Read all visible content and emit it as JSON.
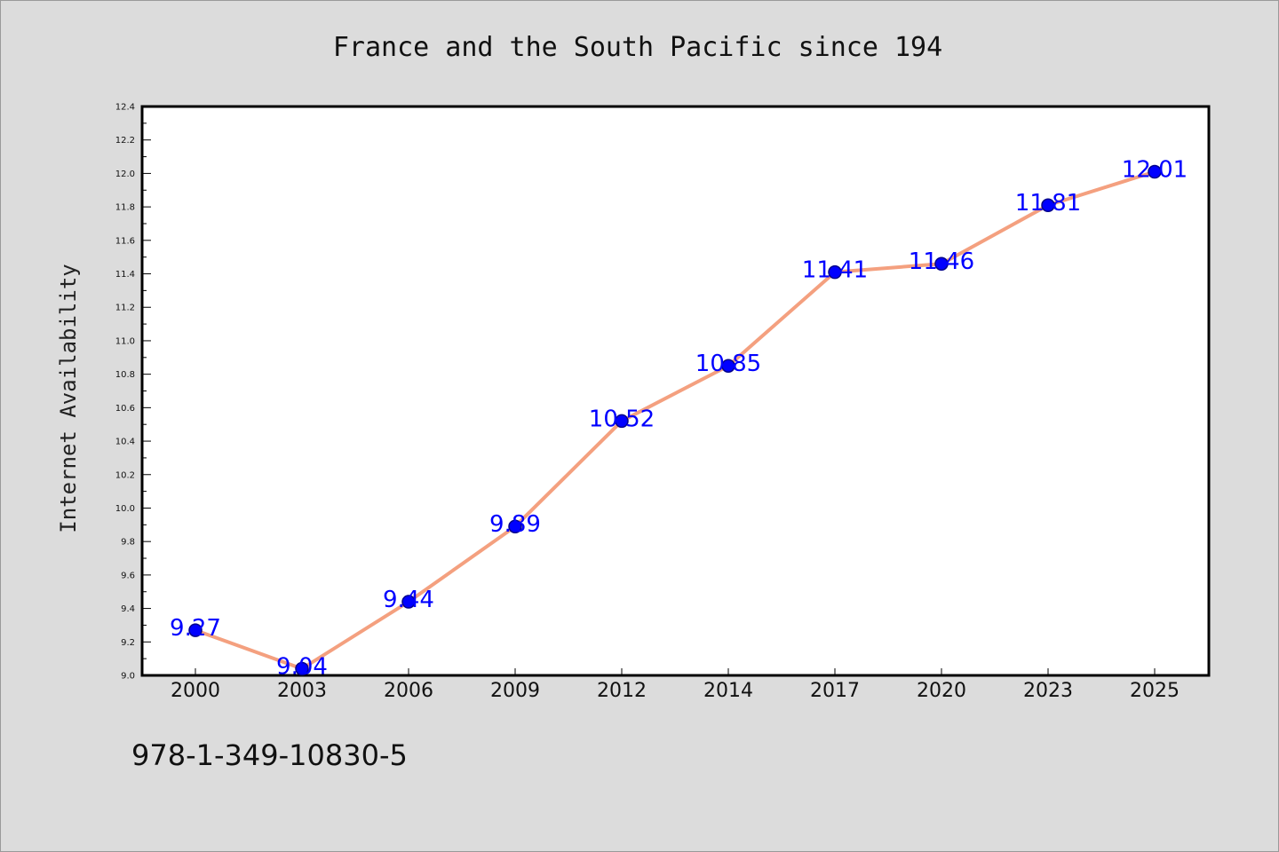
{
  "chart_data": {
    "type": "line",
    "title": "France and the South Pacific since 194",
    "xlabel": "",
    "ylabel": "Internet Availability",
    "categories": [
      "2000",
      "2003",
      "2006",
      "2009",
      "2012",
      "2014",
      "2017",
      "2020",
      "2023",
      "2025"
    ],
    "series": [
      {
        "values": [
          9.27,
          9.04,
          9.44,
          9.89,
          10.52,
          10.85,
          11.41,
          11.46,
          11.81,
          12.01
        ],
        "line_color": "#f4a07f",
        "marker_color": "#0000ff"
      }
    ],
    "data_labels": [
      "9.27",
      "9.04",
      "9.44",
      "9.89",
      "10.52",
      "10.85",
      "11.41",
      "11.46",
      "11.81",
      "12.01"
    ],
    "ylim": [
      9.0,
      12.4
    ],
    "yticks": [
      "9.0",
      "9.2",
      "9.4",
      "9.6",
      "9.8",
      "10.0",
      "10.2",
      "10.4",
      "10.6",
      "10.8",
      "11.0",
      "11.2",
      "11.4",
      "11.6",
      "11.8",
      "12.0",
      "12.2",
      "12.4"
    ],
    "grid": false,
    "legend": "none",
    "label_color": "#0000ff"
  },
  "footer_code": "978-1-349-10830-5"
}
